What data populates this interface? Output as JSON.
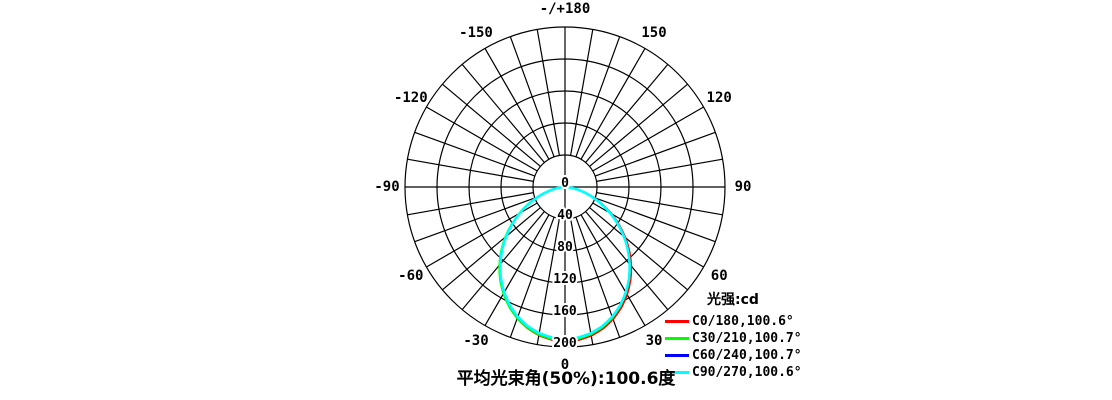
{
  "chart_data": {
    "type": "polar_line",
    "legend_title": "光强:cd",
    "caption": "平均光束角(50%):100.6度",
    "angle_unit": "deg",
    "grid_step_deg": 10,
    "angle_labels": [
      {
        "deg": 180,
        "text": "-/+180"
      },
      {
        "deg": -150,
        "text": "-150"
      },
      {
        "deg": 150,
        "text": "150"
      },
      {
        "deg": -120,
        "text": "-120"
      },
      {
        "deg": 120,
        "text": "120"
      },
      {
        "deg": -90,
        "text": "-90"
      },
      {
        "deg": 90,
        "text": "90"
      },
      {
        "deg": -60,
        "text": "-60"
      },
      {
        "deg": 60,
        "text": "60"
      },
      {
        "deg": -30,
        "text": "-30"
      },
      {
        "deg": 30,
        "text": "30"
      },
      {
        "deg": 0,
        "text": "0"
      }
    ],
    "radial_ticks": [
      {
        "value": 0,
        "label": "0"
      },
      {
        "value": 40,
        "label": "40"
      },
      {
        "value": 80,
        "label": "80"
      },
      {
        "value": 120,
        "label": "120"
      },
      {
        "value": 160,
        "label": "160"
      },
      {
        "value": 200,
        "label": "200"
      }
    ],
    "radial_max": 200,
    "series": [
      {
        "label": "C0/180,100.6°",
        "color": "#ff0000",
        "beam_angle_50pct_deg": 100.6
      },
      {
        "label": "C30/210,100.7°",
        "color": "#00ff00",
        "beam_angle_50pct_deg": 100.7
      },
      {
        "label": "C60/240,100.7°",
        "color": "#0000ff",
        "beam_angle_50pct_deg": 100.7
      },
      {
        "label": "C90/270,100.6°",
        "color": "#00ffff",
        "beam_angle_50pct_deg": 100.6
      }
    ],
    "profile": {
      "angles_deg": [
        0,
        5,
        10,
        15,
        20,
        25,
        30,
        35,
        40,
        45,
        50,
        55,
        60,
        65,
        70,
        75,
        80,
        85,
        90
      ],
      "intensity_cd": [
        190,
        188.9,
        185.6,
        180.1,
        172.6,
        163.2,
        152.1,
        139.6,
        125.8,
        111.2,
        95.9,
        80.4,
        65.0,
        49.9,
        36.1,
        23.5,
        12.7,
        4.4,
        0
      ]
    },
    "grid_color": "#000000",
    "background_color": "#ffffff"
  }
}
